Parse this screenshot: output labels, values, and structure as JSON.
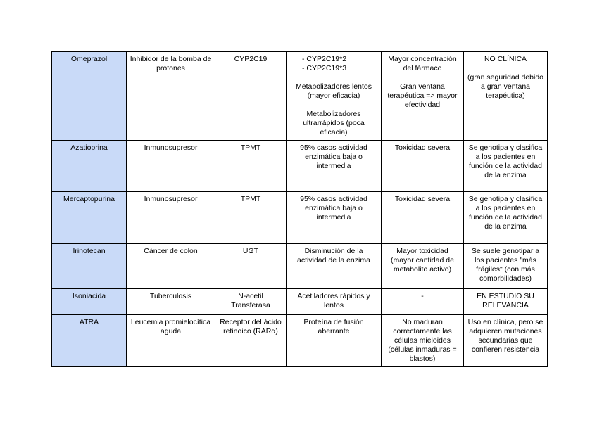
{
  "table": {
    "header_color": "#c9daf8",
    "rows": [
      {
        "drug": "Omeprazol",
        "indication": "Inhibidor de la bomba de protones",
        "gene": "CYP2C19",
        "variants_list": [
          "-     CYP2C19*2",
          "-     CYP2C19*3"
        ],
        "variants": "Metabolizadores lentos (mayor eficacia)\n\nMetabolizadores ultrarrápidos (poca eficacia)",
        "effect": "Mayor concentración del fármaco\n\nGran ventana terapéutica => mayor efectividad",
        "clinical": "NO CLÍNICA\n\n(gran seguridad debido a gran ventana terapéutica)"
      },
      {
        "drug": "Azatioprina",
        "indication": "Inmunosupresor",
        "gene": "TPMT",
        "variants": "95% casos actividad enzimática baja o intermedia",
        "effect": "Toxicidad severa",
        "clinical": "Se genotipa y clasifica a los pacientes en función de la actividad de la enzima"
      },
      {
        "drug": "Mercaptopurina",
        "indication": "Inmunosupresor",
        "gene": "TPMT",
        "variants": "95% casos actividad enzimática baja o intermedia",
        "effect": "Toxicidad severa",
        "clinical": "Se genotipa y clasifica a los pacientes en función de la actividad de la enzima"
      },
      {
        "drug": "Irinotecan",
        "indication": "Cáncer de colon",
        "gene": "UGT",
        "variants": "Disminución de la actividad de la enzima",
        "effect": "Mayor toxicidad (mayor cantidad de metabolito activo)",
        "clinical": "Se suele genotipar a los pacientes \"más frágiles\" (con más comorbilidades)"
      },
      {
        "drug": "Isoniacida",
        "indication": "Tuberculosis",
        "gene": "N-acetil Transferasa",
        "variants": "Acetiladores rápidos y lentos",
        "effect": "-",
        "clinical": "EN ESTUDIO SU RELEVANCIA"
      },
      {
        "drug": "ATRA",
        "indication": "Leucemia promielocítica aguda",
        "gene": "Receptor del ácido retinoico (RARα)",
        "variants": "Proteína de fusión aberrante",
        "effect": "No maduran correctamente las células mieloides (células inmaduras = blastos)",
        "clinical": "Uso en clínica, pero se adquieren mutaciones secundarias que confieren resistencia"
      }
    ]
  }
}
